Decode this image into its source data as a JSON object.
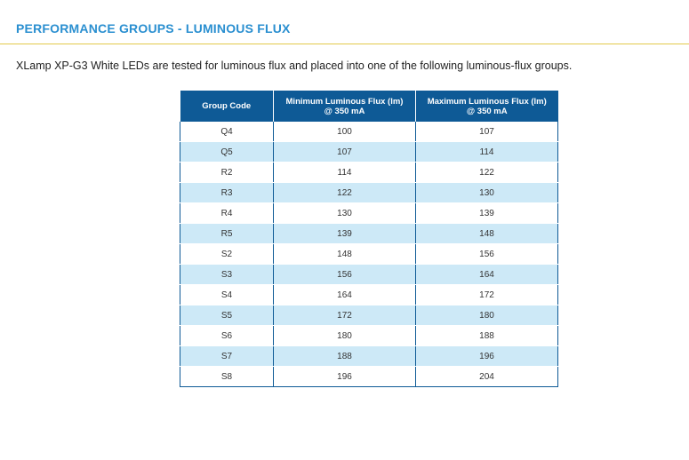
{
  "heading": "PERFORMANCE GROUPS - LUMINOUS FLUX",
  "intro": "XLamp XP-G3 White LEDs are tested for luminous flux and placed into one of the following luminous-flux groups.",
  "colors": {
    "heading": "#2a8fd0",
    "rule": "#e2c94a",
    "table_header": "#0e5a96",
    "row_stripe": "#cde9f7"
  },
  "table": {
    "headers": [
      {
        "line1": "Group Code",
        "line2": ""
      },
      {
        "line1": "Minimum Luminous Flux (lm)",
        "line2": "@ 350 mA"
      },
      {
        "line1": "Maximum Luminous Flux (lm)",
        "line2": "@ 350 mA"
      }
    ],
    "rows": [
      [
        "Q4",
        "100",
        "107"
      ],
      [
        "Q5",
        "107",
        "114"
      ],
      [
        "R2",
        "114",
        "122"
      ],
      [
        "R3",
        "122",
        "130"
      ],
      [
        "R4",
        "130",
        "139"
      ],
      [
        "R5",
        "139",
        "148"
      ],
      [
        "S2",
        "148",
        "156"
      ],
      [
        "S3",
        "156",
        "164"
      ],
      [
        "S4",
        "164",
        "172"
      ],
      [
        "S5",
        "172",
        "180"
      ],
      [
        "S6",
        "180",
        "188"
      ],
      [
        "S7",
        "188",
        "196"
      ],
      [
        "S8",
        "196",
        "204"
      ]
    ]
  }
}
